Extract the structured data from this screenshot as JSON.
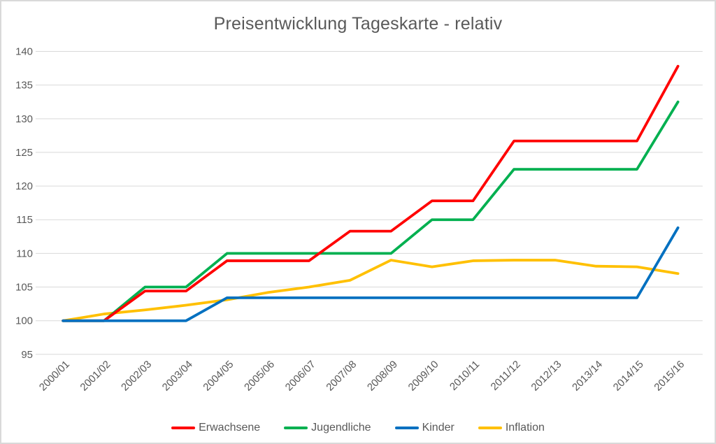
{
  "chart": {
    "title": "Preisentwicklung Tageskarte - relativ"
  },
  "chart_data": {
    "type": "line",
    "title": "Preisentwicklung Tageskarte - relativ",
    "categories": [
      "2000/01",
      "2001/02",
      "2002/03",
      "2003/04",
      "2004/05",
      "2005/06",
      "2006/07",
      "2007/08",
      "2008/09",
      "2009/10",
      "2010/11",
      "2011/12",
      "2012/13",
      "2013/14",
      "2014/15",
      "2015/16"
    ],
    "series": [
      {
        "name": "Erwachsene",
        "color": "#FF0000",
        "values": [
          100,
          100,
          104.4,
          104.4,
          108.9,
          108.9,
          108.9,
          113.3,
          113.3,
          117.8,
          117.8,
          126.7,
          126.7,
          126.7,
          126.7,
          137.8
        ]
      },
      {
        "name": "Jugendliche",
        "color": "#00B050",
        "values": [
          100,
          100,
          105,
          105,
          110,
          110,
          110,
          110,
          110,
          115,
          115,
          122.5,
          122.5,
          122.5,
          122.5,
          132.5
        ]
      },
      {
        "name": "Kinder",
        "color": "#0070C0",
        "values": [
          100,
          100,
          100,
          100,
          103.4,
          103.4,
          103.4,
          103.4,
          103.4,
          103.4,
          103.4,
          103.4,
          103.4,
          103.4,
          103.4,
          113.8
        ]
      },
      {
        "name": "Inflation",
        "color": "#FFC000",
        "values": [
          100,
          101,
          101.6,
          102.3,
          103.1,
          104.2,
          105,
          106,
          109,
          108,
          108.9,
          109,
          109,
          108.1,
          108,
          107
        ]
      }
    ],
    "z_order": [
      "Inflation",
      "Jugendliche",
      "Erwachsene",
      "Kinder"
    ],
    "ylim": [
      95,
      140
    ],
    "yticks": [
      95,
      100,
      105,
      110,
      115,
      120,
      125,
      130,
      135,
      140
    ],
    "grid": "horizontal-only",
    "legend_position": "bottom",
    "styles": {
      "title_color": "#595959",
      "tick_label_color": "#595959",
      "gridline_color": "#D9D9D9",
      "background": "#FFFFFF",
      "border_color": "#D9D9D9"
    }
  }
}
